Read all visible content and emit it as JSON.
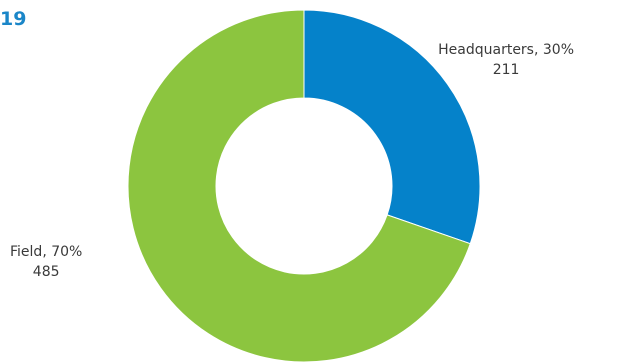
{
  "header": {
    "year_fragment": "19"
  },
  "chart_data": {
    "type": "pie",
    "donut": true,
    "start_angle_deg": 0,
    "direction": "clockwise",
    "slices": [
      {
        "label": "Headquarters, 30%",
        "value": 211,
        "value_text": "211",
        "percent": 30,
        "color": "#0582ca"
      },
      {
        "label": "Field, 70%",
        "value": 485,
        "value_text": "485",
        "percent": 70,
        "color": "#8cc53f"
      }
    ],
    "legend": "none",
    "title": ""
  }
}
